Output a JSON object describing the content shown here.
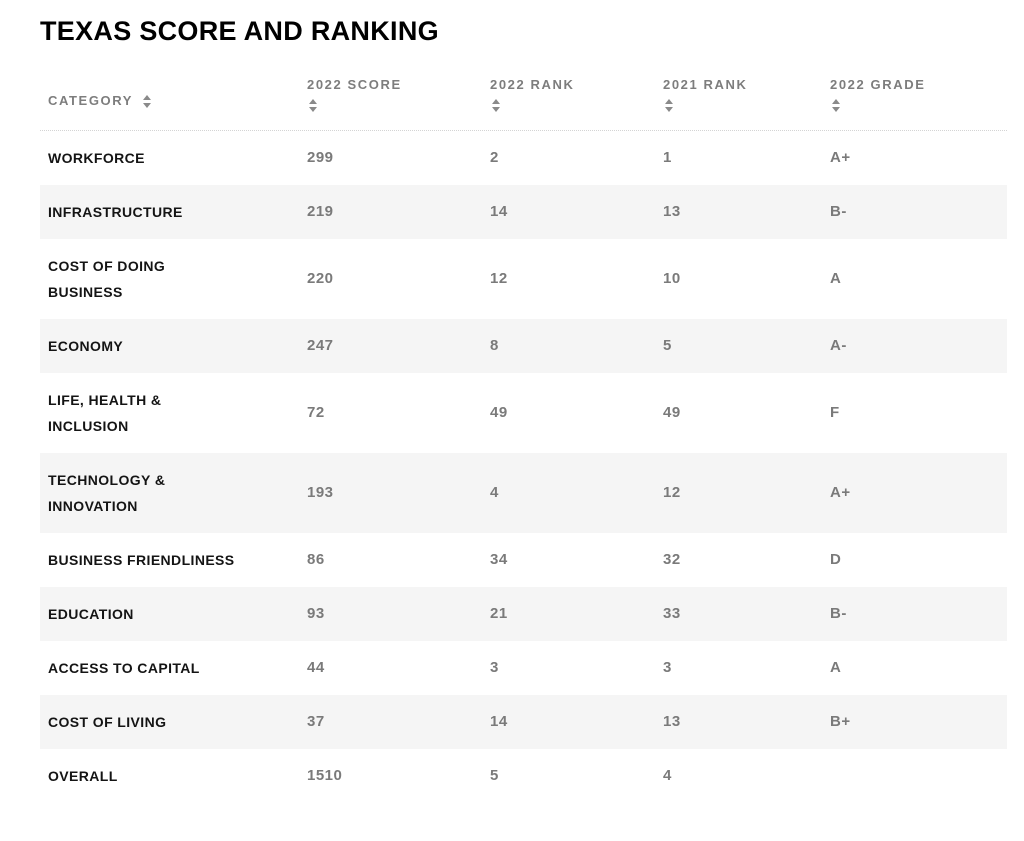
{
  "page": {
    "title": "TEXAS SCORE AND RANKING"
  },
  "table": {
    "columns": [
      {
        "key": "category",
        "label": "CATEGORY",
        "sortable": true
      },
      {
        "key": "score2022",
        "label": "2022 SCORE",
        "sortable": true
      },
      {
        "key": "rank2022",
        "label": "2022 RANK",
        "sortable": true
      },
      {
        "key": "rank2021",
        "label": "2021 RANK",
        "sortable": true
      },
      {
        "key": "grade2022",
        "label": "2022 GRADE",
        "sortable": true
      }
    ],
    "rows": [
      {
        "category": "WORKFORCE",
        "score2022": "299",
        "rank2022": "2",
        "rank2021": "1",
        "grade2022": "A+"
      },
      {
        "category": "INFRASTRUCTURE",
        "score2022": "219",
        "rank2022": "14",
        "rank2021": "13",
        "grade2022": "B-"
      },
      {
        "category": "COST OF DOING\nBUSINESS",
        "score2022": "220",
        "rank2022": "12",
        "rank2021": "10",
        "grade2022": "A"
      },
      {
        "category": "ECONOMY",
        "score2022": "247",
        "rank2022": "8",
        "rank2021": "5",
        "grade2022": "A-"
      },
      {
        "category": "LIFE, HEALTH &\nINCLUSION",
        "score2022": "72",
        "rank2022": "49",
        "rank2021": "49",
        "grade2022": "F"
      },
      {
        "category": "TECHNOLOGY &\nINNOVATION",
        "score2022": "193",
        "rank2022": "4",
        "rank2021": "12",
        "grade2022": "A+"
      },
      {
        "category": "BUSINESS FRIENDLINESS",
        "score2022": "86",
        "rank2022": "34",
        "rank2021": "32",
        "grade2022": "D"
      },
      {
        "category": "EDUCATION",
        "score2022": "93",
        "rank2022": "21",
        "rank2021": "33",
        "grade2022": "B-"
      },
      {
        "category": "ACCESS TO CAPITAL",
        "score2022": "44",
        "rank2022": "3",
        "rank2021": "3",
        "grade2022": "A"
      },
      {
        "category": "COST OF LIVING",
        "score2022": "37",
        "rank2022": "14",
        "rank2021": "13",
        "grade2022": "B+"
      },
      {
        "category": "OVERALL",
        "score2022": "1510",
        "rank2022": "5",
        "rank2021": "4",
        "grade2022": ""
      }
    ]
  },
  "colors": {
    "stripe": "#f5f5f5",
    "header_text": "#7d7d7d",
    "value_text": "#7a7a7a",
    "category_text": "#141414",
    "title_text": "#000000",
    "divider": "#d4d4d4"
  }
}
